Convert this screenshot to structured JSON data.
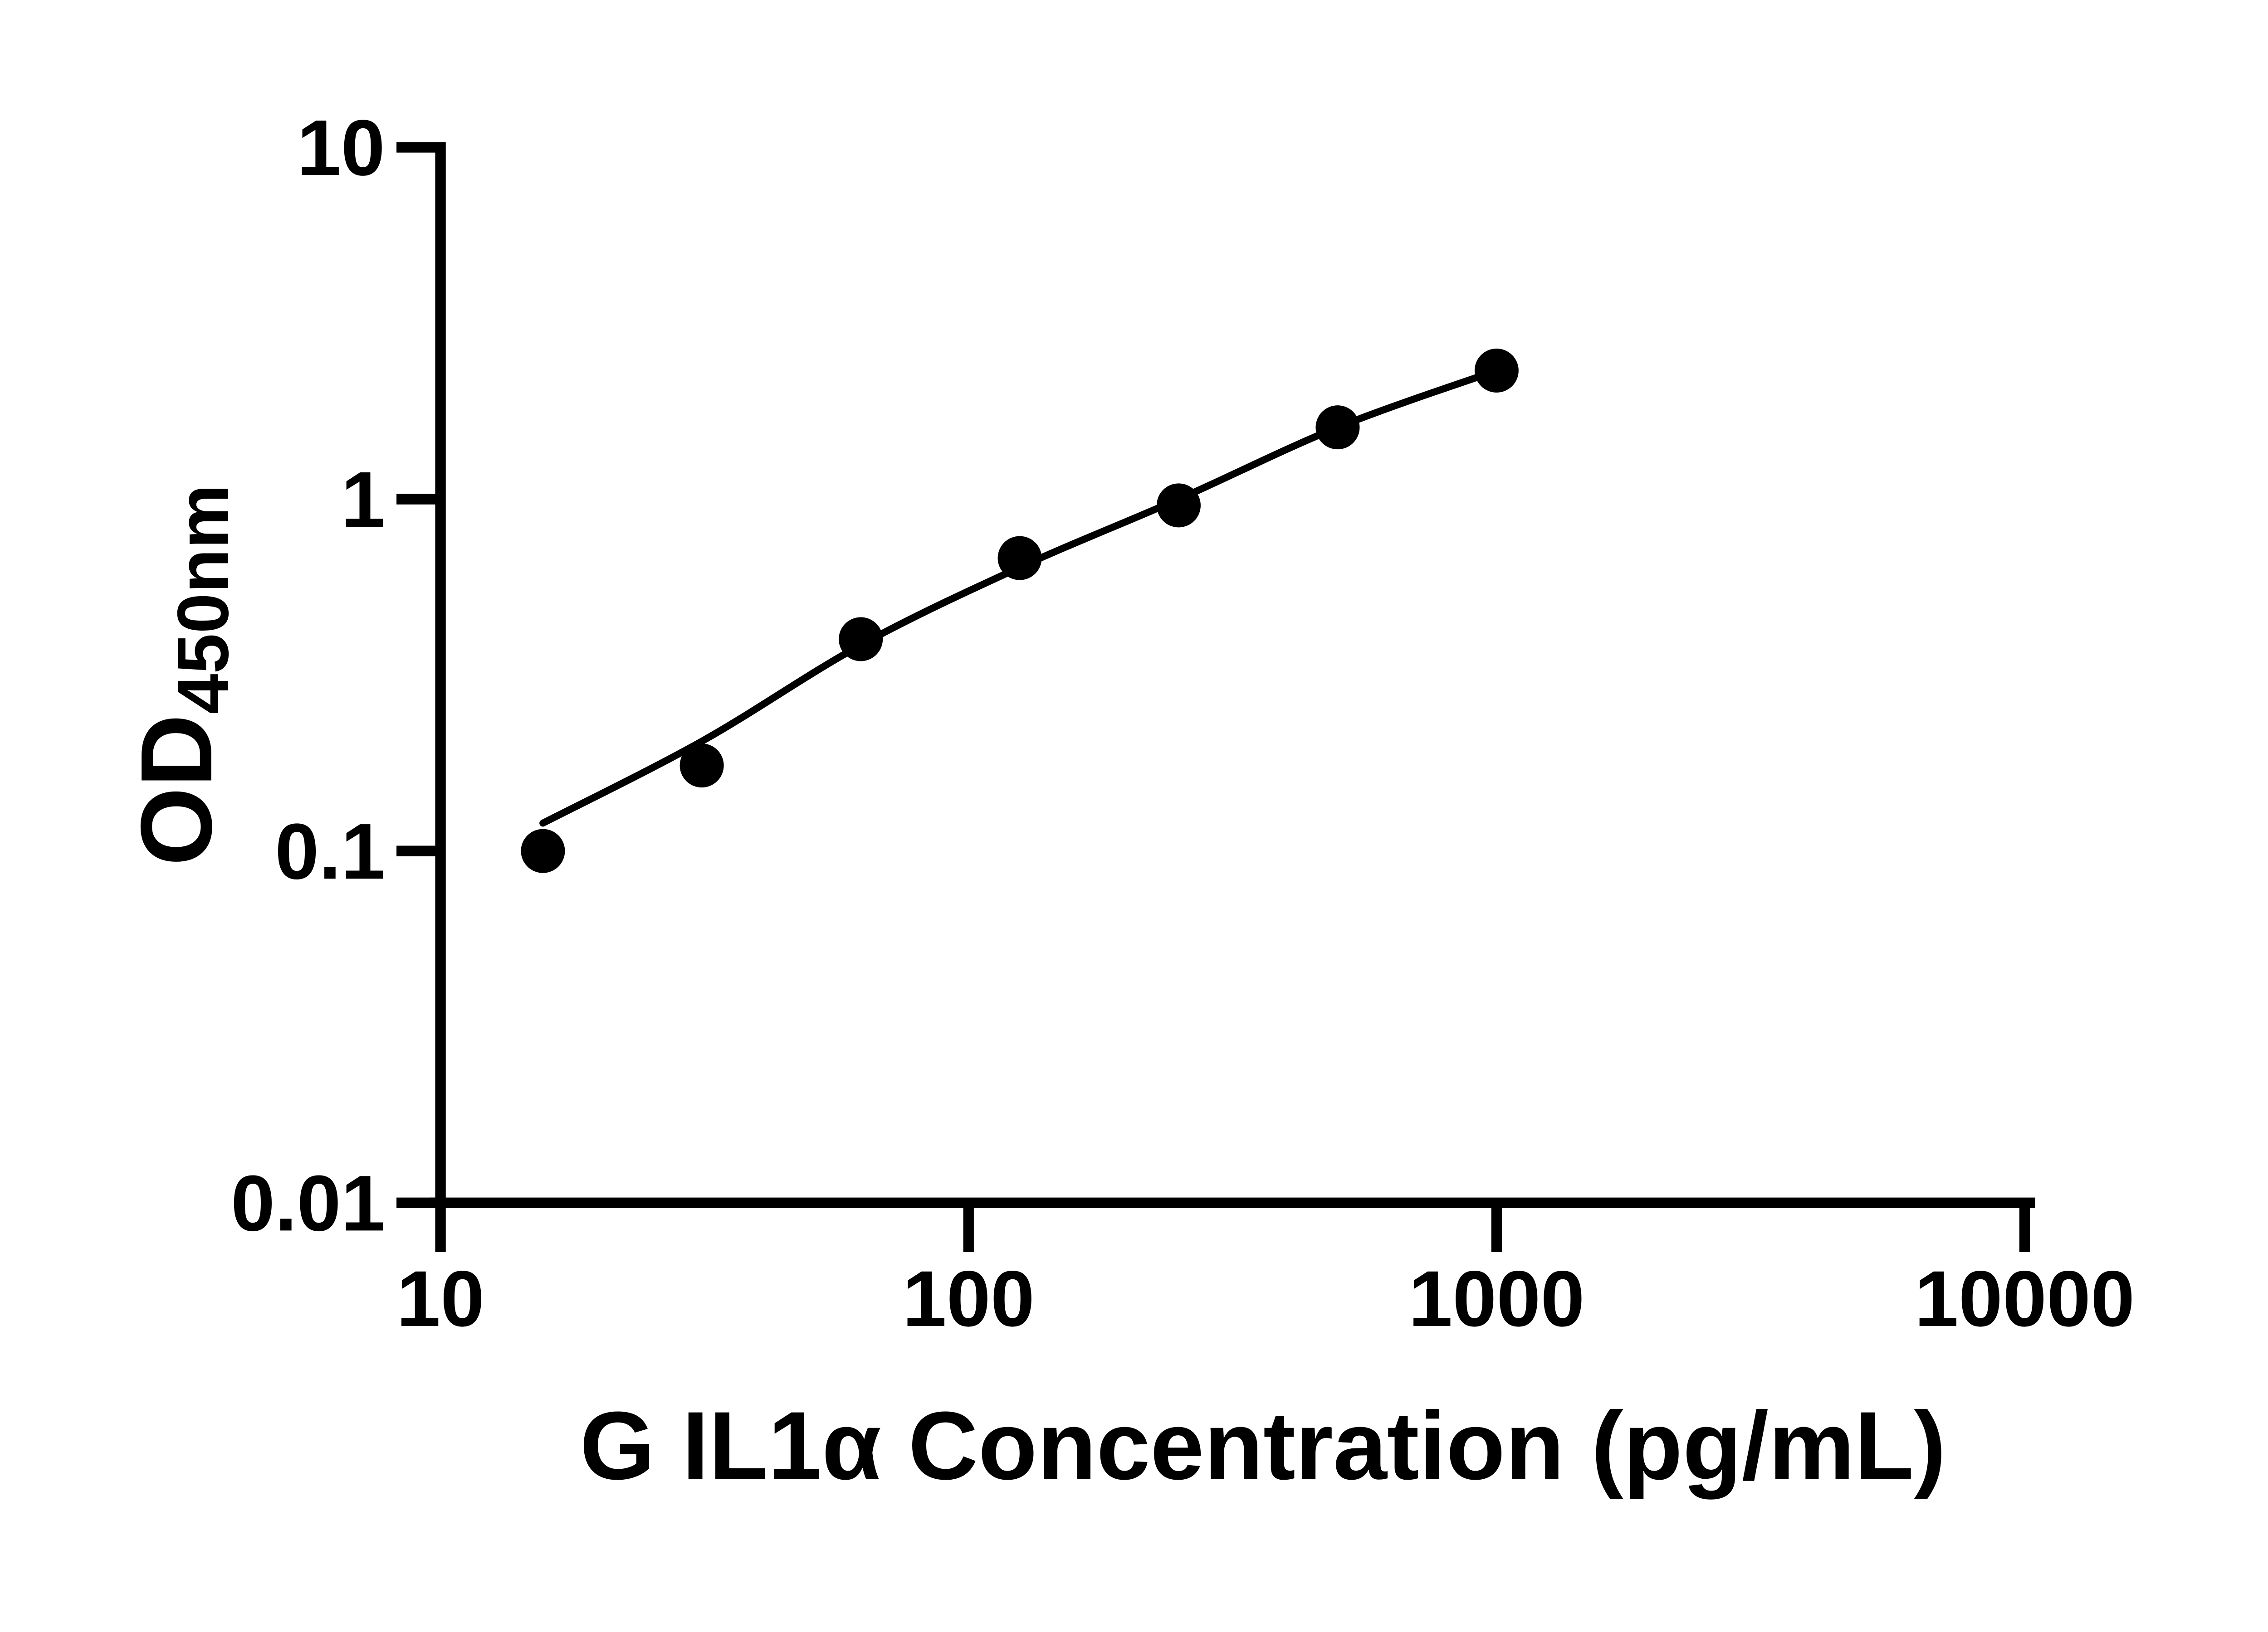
{
  "chart_data": {
    "type": "scatter",
    "title": "",
    "xlabel": "G IL1α Concentration (pg/mL)",
    "ylabel": "OD450nm",
    "ylabel_main": "OD",
    "ylabel_sub": "450nm",
    "x_scale": "log10",
    "y_scale": "log10",
    "xlim": [
      10,
      10000
    ],
    "ylim": [
      0.01,
      10
    ],
    "x_ticks": [
      10,
      100,
      1000,
      10000
    ],
    "x_tick_labels": [
      "10",
      "100",
      "1000",
      "10000"
    ],
    "y_ticks": [
      10,
      1,
      0.1,
      0.01
    ],
    "y_tick_labels": [
      "10",
      "1",
      "0.1",
      "0.01"
    ],
    "grid": false,
    "legend_position": "none",
    "colors": {
      "axis": "#000000",
      "marker": "#000000",
      "curve": "#000000",
      "background": "#ffffff"
    },
    "series": [
      {
        "name": "standard-points",
        "marker": "filled-circle",
        "x": [
          15.63,
          31.25,
          62.5,
          125,
          250,
          500,
          1000
        ],
        "y": [
          0.1,
          0.175,
          0.4,
          0.68,
          0.96,
          1.6,
          2.32
        ]
      }
    ],
    "fit_curve": {
      "name": "standard-curve-fit",
      "x": [
        15.63,
        31.25,
        62.5,
        125,
        250,
        500,
        1000
      ],
      "y": [
        0.12,
        0.205,
        0.385,
        0.64,
        1.0,
        1.6,
        2.32
      ]
    }
  }
}
